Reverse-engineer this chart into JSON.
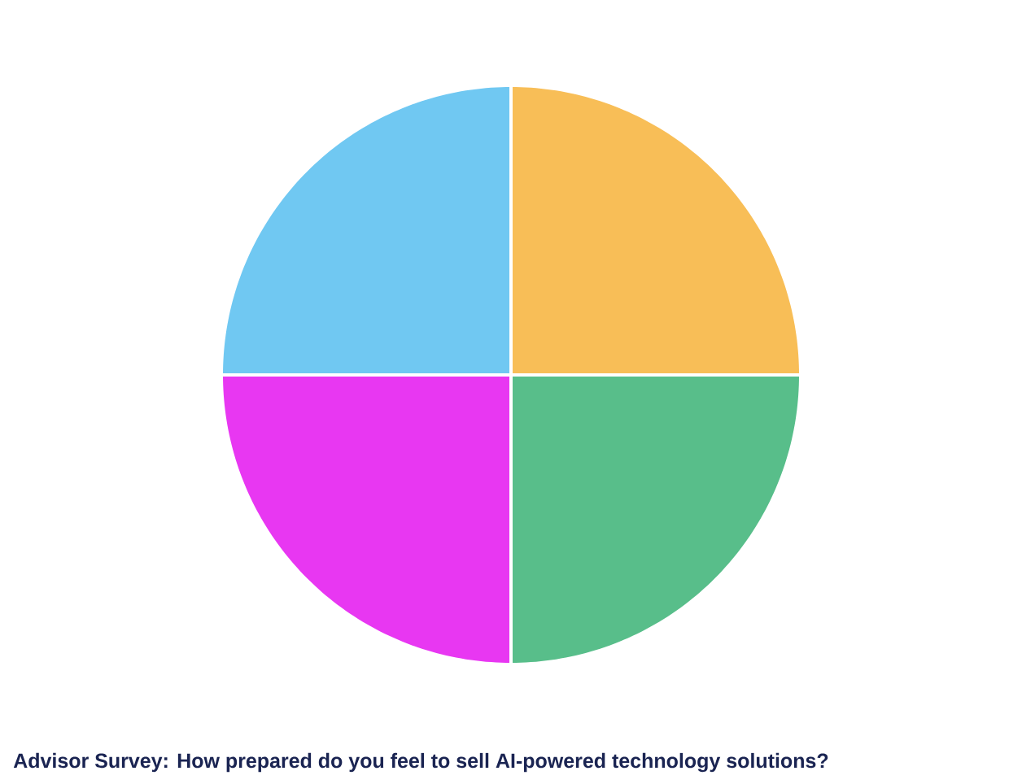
{
  "chart_data": {
    "type": "pie",
    "title": "Advisor Survey: How prepared do you feel to sell AI-powered technology solutions?",
    "categories": [
      null,
      null,
      null,
      null
    ],
    "values": [
      25,
      25,
      25,
      25
    ],
    "colors": [
      "#f8be57",
      "#58be8a",
      "#e837f2",
      "#70c8f2"
    ]
  }
}
